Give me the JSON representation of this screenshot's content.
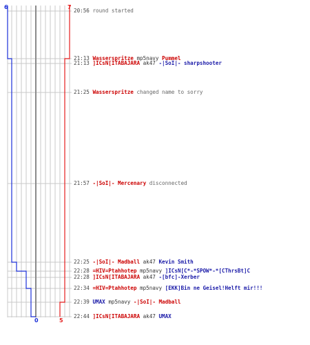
{
  "scores": {
    "blue_start": "6",
    "red_start": "7",
    "blue_end": "0",
    "red_end": "5"
  },
  "colors": {
    "blue_team": "#1a2ed8",
    "red_team": "#e41b1b"
  },
  "events": [
    {
      "time": "20:56",
      "parts": [
        {
          "t": "round started",
          "c": "dim"
        }
      ]
    },
    {
      "time": "21:13",
      "parts": [
        {
          "t": "Wasserspritze",
          "c": "red"
        },
        {
          "t": "mp5navy",
          "c": "weapon"
        },
        {
          "t": "Pummel",
          "c": "red"
        }
      ]
    },
    {
      "time": "21:13",
      "parts": [
        {
          "t": "]ICsN[ITABAJARA",
          "c": "red"
        },
        {
          "t": "ak47",
          "c": "weapon"
        },
        {
          "t": "-|SoI|- sharpshooter",
          "c": "blue"
        }
      ]
    },
    {
      "time": "21:25",
      "parts": [
        {
          "t": "Wasserspritze",
          "c": "red"
        },
        {
          "t": "changed name to sorry",
          "c": "dim"
        }
      ]
    },
    {
      "time": "21:57",
      "parts": [
        {
          "t": "-|SoI|- Mercenary",
          "c": "red"
        },
        {
          "t": "disconnected",
          "c": "dim"
        }
      ]
    },
    {
      "time": "22:25",
      "parts": [
        {
          "t": "-|SoI|- Madball",
          "c": "red"
        },
        {
          "t": "ak47",
          "c": "weapon"
        },
        {
          "t": "Kevin Smith",
          "c": "blue"
        }
      ]
    },
    {
      "time": "22:28",
      "parts": [
        {
          "t": "=HIV=Ptahhotep",
          "c": "red"
        },
        {
          "t": "mp5navy",
          "c": "weapon"
        },
        {
          "t": "]ICsN[C*-*SPOW*-*[CThrsBt]C",
          "c": "blue"
        }
      ]
    },
    {
      "time": "22:28",
      "parts": [
        {
          "t": "]ICsN[ITABAJARA",
          "c": "red"
        },
        {
          "t": "ak47",
          "c": "weapon"
        },
        {
          "t": "-[bfc]-Xerber",
          "c": "blue"
        }
      ]
    },
    {
      "time": "22:34",
      "parts": [
        {
          "t": "=HIV=Ptahhotep",
          "c": "red"
        },
        {
          "t": "mp5navy",
          "c": "weapon"
        },
        {
          "t": "[EKK]Bin ne Geisel!Helft mir!!!",
          "c": "blue"
        }
      ]
    },
    {
      "time": "22:39",
      "parts": [
        {
          "t": "UMAX",
          "c": "blue"
        },
        {
          "t": "mp5navy",
          "c": "weapon"
        },
        {
          "t": "-|SoI|- Madball",
          "c": "red"
        }
      ]
    },
    {
      "time": "22:44",
      "parts": [
        {
          "t": "]ICsN[ITABAJARA",
          "c": "red"
        },
        {
          "t": "ak47",
          "c": "weapon"
        },
        {
          "t": "UMAX",
          "c": "blue"
        }
      ]
    }
  ]
}
